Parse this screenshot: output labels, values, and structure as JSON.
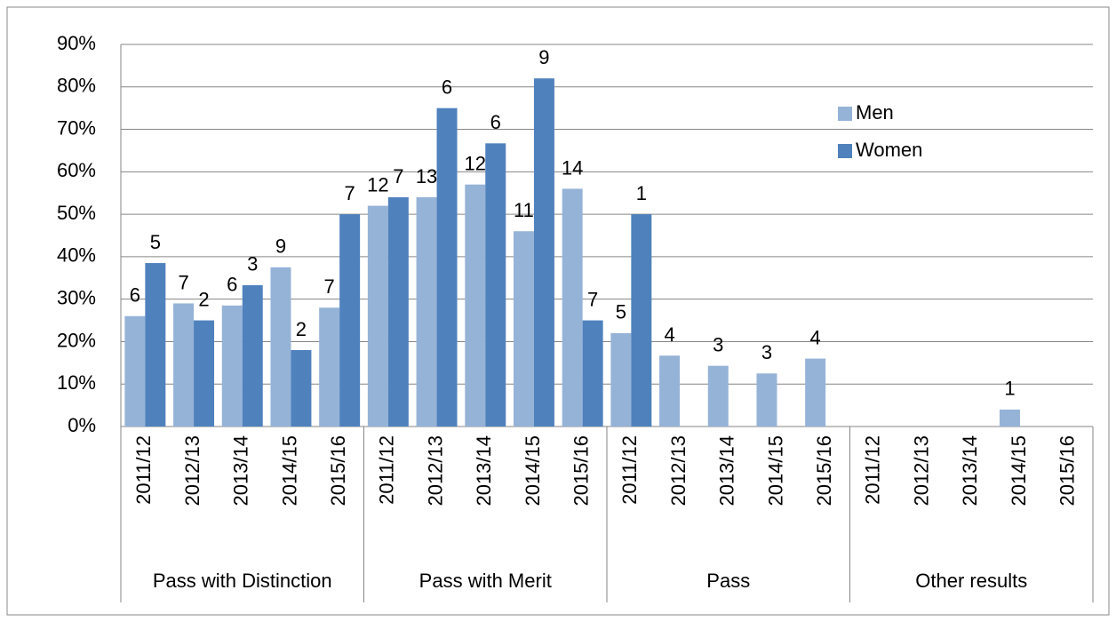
{
  "chart_data": {
    "type": "bar",
    "groups": [
      {
        "name": "Pass with Distinction",
        "categories": [
          "2011/12",
          "2012/13",
          "2013/14",
          "2014/15",
          "2015/16"
        ]
      },
      {
        "name": "Pass with Merit",
        "categories": [
          "2011/12",
          "2012/13",
          "2013/14",
          "2014/15",
          "2015/16"
        ]
      },
      {
        "name": "Pass",
        "categories": [
          "2011/12",
          "2012/13",
          "2013/14",
          "2014/15",
          "2015/16"
        ]
      },
      {
        "name": "Other results",
        "categories": [
          "2011/12",
          "2012/13",
          "2013/14",
          "2014/15",
          "2015/16"
        ]
      }
    ],
    "series": [
      {
        "name": "Men",
        "color": "#95b3d7",
        "values": [
          26,
          29,
          28.5,
          37.5,
          28,
          52,
          54,
          57,
          46,
          56,
          22,
          16.7,
          14.3,
          12.5,
          16,
          null,
          null,
          null,
          4,
          null
        ],
        "counts": [
          6,
          7,
          6,
          9,
          7,
          12,
          13,
          12,
          11,
          14,
          5,
          4,
          3,
          3,
          4,
          null,
          null,
          null,
          1,
          null
        ]
      },
      {
        "name": "Women",
        "color": "#4f81bd",
        "values": [
          38.5,
          25,
          33.3,
          18,
          50,
          54,
          75,
          66.7,
          82,
          25,
          50,
          null,
          null,
          null,
          null,
          null,
          null,
          null,
          null,
          null
        ],
        "counts": [
          5,
          2,
          3,
          2,
          7,
          7,
          6,
          6,
          9,
          7,
          1,
          null,
          null,
          null,
          null,
          null,
          null,
          null,
          null,
          null
        ]
      }
    ],
    "ylim": [
      0,
      90
    ],
    "yticks": [
      {
        "value": 0,
        "label": "0%"
      },
      {
        "value": 10,
        "label": "10%"
      },
      {
        "value": 20,
        "label": "20%"
      },
      {
        "value": 30,
        "label": "30%"
      },
      {
        "value": 40,
        "label": "40%"
      },
      {
        "value": 50,
        "label": "50%"
      },
      {
        "value": 60,
        "label": "60%"
      },
      {
        "value": 70,
        "label": "70%"
      },
      {
        "value": 80,
        "label": "80%"
      },
      {
        "value": 90,
        "label": "90%"
      }
    ],
    "grid": true,
    "legend": "upper right"
  }
}
